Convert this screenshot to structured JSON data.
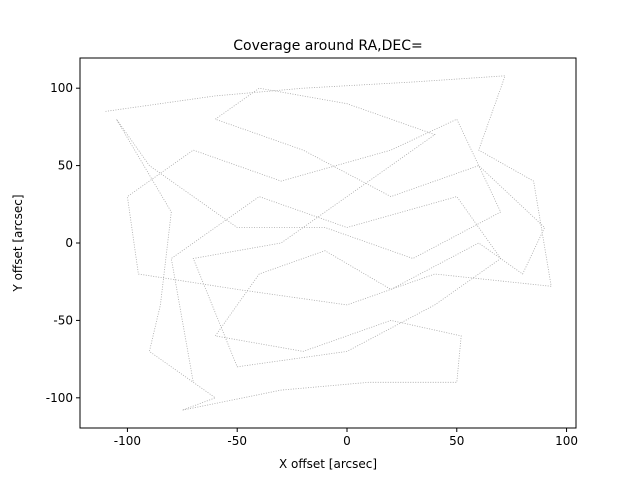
{
  "chart_data": {
    "type": "line",
    "title": "Coverage around RA,DEC=",
    "x_label": "X offset [arcsec]",
    "y_label": "Y offset [arcsec]",
    "x": [
      -110,
      -60,
      -20,
      30,
      72,
      60,
      85,
      93,
      40,
      0,
      -50,
      -95,
      -100,
      -70,
      -30,
      20,
      50,
      70,
      30,
      -10,
      -50,
      -90,
      -105,
      -80,
      -85,
      -90,
      -60,
      -75,
      -30,
      10,
      50,
      52,
      20,
      -20,
      -60,
      -40,
      -10,
      20,
      60,
      80,
      90,
      60,
      20,
      -20,
      -60,
      -40,
      0,
      40,
      10,
      -30,
      -70,
      -50,
      0,
      40,
      70,
      50,
      0,
      -40,
      -80,
      -70
    ],
    "y": [
      85,
      95,
      100,
      104,
      108,
      60,
      40,
      -28,
      -20,
      -40,
      -30,
      -20,
      30,
      60,
      40,
      60,
      80,
      20,
      -10,
      10,
      10,
      50,
      80,
      20,
      -40,
      -70,
      -100,
      -108,
      -95,
      -90,
      -90,
      -60,
      -50,
      -70,
      -60,
      -20,
      -5,
      -30,
      0,
      -20,
      10,
      50,
      30,
      60,
      80,
      100,
      90,
      70,
      40,
      0,
      -10,
      -80,
      -70,
      -40,
      -10,
      30,
      10,
      30,
      -10,
      -90
    ],
    "color": "#000000",
    "xlim": [
      -121.6,
      104.3
    ],
    "ylim": [
      -119.5,
      119.5
    ],
    "xticks": [
      -100,
      -50,
      0,
      50,
      100
    ],
    "yticks": [
      -100,
      -50,
      0,
      50,
      100
    ],
    "grid": false
  }
}
